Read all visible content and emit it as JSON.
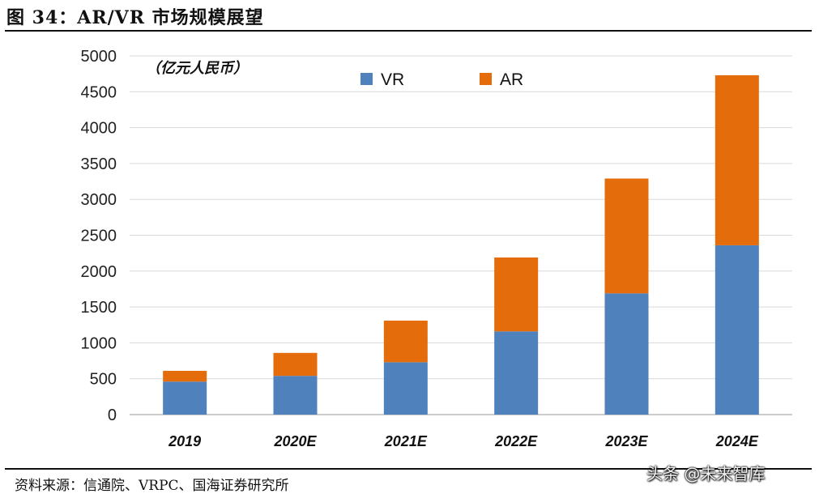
{
  "figure": {
    "title": "图 34：AR/VR 市场规模展望",
    "source": "资料来源：信通院、VRPC、国海证券研究所",
    "watermark": "头条 @未来智库"
  },
  "chart_data": {
    "type": "bar",
    "stacked": true,
    "unit_label": "（亿元人民币）",
    "categories": [
      "2019",
      "2020E",
      "2021E",
      "2022E",
      "2023E",
      "2024E"
    ],
    "series": [
      {
        "name": "VR",
        "color": "#4f81bd",
        "values": [
          460,
          540,
          730,
          1160,
          1690,
          2360
        ]
      },
      {
        "name": "AR",
        "color": "#e46c0a",
        "values": [
          150,
          320,
          580,
          1030,
          1600,
          2370
        ]
      }
    ],
    "yticks": [
      "0",
      "500",
      "1000",
      "1500",
      "2000",
      "2500",
      "3000",
      "3500",
      "4000",
      "4500",
      "5000"
    ],
    "ylim": [
      0,
      5000
    ],
    "grid": true,
    "legend_position": "top"
  }
}
